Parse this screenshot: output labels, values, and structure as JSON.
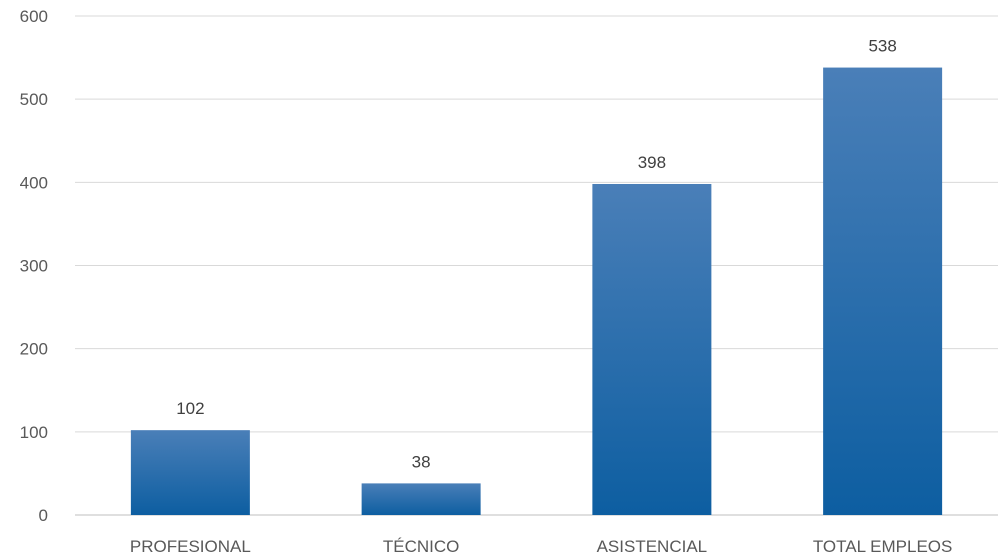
{
  "chart_data": {
    "type": "bar",
    "title": "",
    "xlabel": "",
    "ylabel": "",
    "categories": [
      "PROFESIONAL",
      "TÉCNICO",
      "ASISTENCIAL",
      "TOTAL EMPLEOS"
    ],
    "values": [
      102,
      38,
      398,
      538
    ],
    "ylim": [
      0,
      600
    ],
    "yticks": [
      0,
      100,
      200,
      300,
      400,
      500,
      600
    ],
    "data_labels": [
      "102",
      "38",
      "398",
      "538"
    ],
    "grid": true,
    "legend": "none",
    "colors": {
      "bar_top": "#4a7fb8",
      "bar_bottom": "#0d5ea1",
      "grid": "#d9d9d9",
      "tick_text": "#595959",
      "label_text": "#404040"
    }
  }
}
